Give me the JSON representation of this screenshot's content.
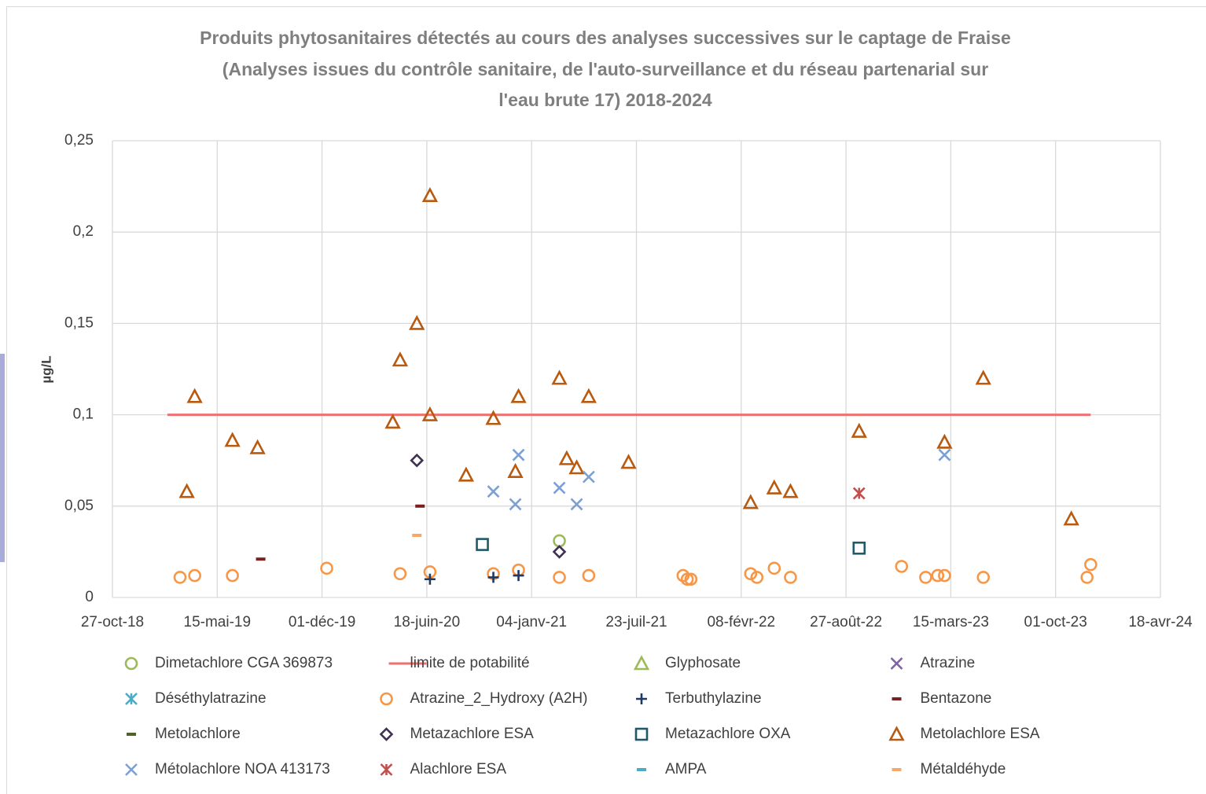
{
  "chart_data": {
    "type": "scatter",
    "title": [
      "Produits phytosanitaires détectés au cours des analyses successives sur le captage de Fraise",
      "(Analyses issues du contrôle sanitaire, de l'auto-surveillance et du réseau partenarial sur",
      "l'eau brute 17) 2018-2024"
    ],
    "y_label": "µg/L",
    "xlim": [
      "2018-10-27",
      "2024-04-18"
    ],
    "xticks": [
      {
        "value": "2018-10-27",
        "label": "27-oct-18"
      },
      {
        "value": "2019-05-15",
        "label": "15-mai-19"
      },
      {
        "value": "2019-12-01",
        "label": "01-déc-19"
      },
      {
        "value": "2020-06-18",
        "label": "18-juin-20"
      },
      {
        "value": "2021-01-04",
        "label": "04-janv-21"
      },
      {
        "value": "2021-07-23",
        "label": "23-juil-21"
      },
      {
        "value": "2022-02-08",
        "label": "08-févr-22"
      },
      {
        "value": "2022-08-27",
        "label": "27-août-22"
      },
      {
        "value": "2023-03-15",
        "label": "15-mars-23"
      },
      {
        "value": "2023-10-01",
        "label": "01-oct-23"
      },
      {
        "value": "2024-04-18",
        "label": "18-avr-24"
      }
    ],
    "ylim": [
      0,
      0.25
    ],
    "yticks": [
      0,
      {
        "value": 0.05,
        "label": "0,05"
      },
      {
        "value": 0.1,
        "label": "0,1"
      },
      {
        "value": 0.15,
        "label": "0,15"
      },
      {
        "value": 0.2,
        "label": "0,2"
      },
      {
        "value": 0.25,
        "label": "0,25"
      }
    ],
    "grid": true,
    "series": [
      {
        "name": "Dimetachlore CGA 369873",
        "color": "#9bbb59",
        "marker": "circle",
        "x": [
          "2021-02-26"
        ],
        "values": [
          0.031
        ]
      },
      {
        "name": "limite de potabilité",
        "color": "#f07070",
        "marker": "line",
        "x": [
          "2019-02-09",
          "2023-12-07"
        ],
        "values": [
          0.1,
          0.1
        ]
      },
      {
        "name": "Glyphosate",
        "color": "#9bbb59",
        "marker": "triangle",
        "x": [],
        "values": []
      },
      {
        "name": "Atrazine",
        "color": "#8064a2",
        "marker": "x",
        "x": [],
        "values": []
      },
      {
        "name": "Déséthylatrazine",
        "color": "#4bacc6",
        "marker": "star",
        "x": [],
        "values": []
      },
      {
        "name": "Atrazine_2_Hydroxy (A2H)",
        "color": "#f79646",
        "marker": "circle",
        "x": [
          "2019-03-05",
          "2019-04-02",
          "2019-06-13",
          "2019-12-10",
          "2020-04-28",
          "2020-06-24",
          "2020-10-23",
          "2020-12-10",
          "2021-02-26",
          "2021-04-23",
          "2021-10-20",
          "2021-10-28",
          "2021-11-04",
          "2022-02-26",
          "2022-03-10",
          "2022-04-12",
          "2022-05-13",
          "2022-12-11",
          "2023-01-26",
          "2023-02-18",
          "2023-03-03",
          "2023-05-16",
          "2023-11-30",
          "2023-12-07"
        ],
        "values": [
          0.011,
          0.012,
          0.012,
          0.016,
          0.013,
          0.014,
          0.013,
          0.015,
          0.011,
          0.012,
          0.012,
          0.01,
          0.01,
          0.013,
          0.011,
          0.016,
          0.011,
          0.017,
          0.011,
          0.012,
          0.012,
          0.011,
          0.011,
          0.018
        ]
      },
      {
        "name": "Terbuthylazine",
        "color": "#1f3864",
        "marker": "plus",
        "x": [
          "2020-06-24",
          "2020-10-23",
          "2020-12-10"
        ],
        "values": [
          0.01,
          0.011,
          0.012
        ]
      },
      {
        "name": "Bentazone",
        "color": "#7b2020",
        "marker": "dash",
        "x": [
          "2019-08-06",
          "2020-06-05"
        ],
        "values": [
          0.021,
          0.05
        ]
      },
      {
        "name": "Metolachlore",
        "color": "#4f6228",
        "marker": "dash",
        "x": [],
        "values": []
      },
      {
        "name": "Metazachlore ESA",
        "color": "#403152",
        "marker": "diamond",
        "x": [
          "2020-05-30",
          "2021-02-26"
        ],
        "values": [
          0.075,
          0.025
        ]
      },
      {
        "name": "Metazachlore OXA",
        "color": "#215968",
        "marker": "square",
        "x": [
          "2020-10-02",
          "2022-09-21"
        ],
        "values": [
          0.029,
          0.027
        ]
      },
      {
        "name": "Metolachlore ESA",
        "color": "#b85a10",
        "marker": "triangle",
        "x": [
          "2019-03-18",
          "2019-04-02",
          "2019-06-13",
          "2019-07-31",
          "2020-04-14",
          "2020-04-28",
          "2020-05-30",
          "2020-06-24",
          "2020-06-24",
          "2020-09-01",
          "2020-10-23",
          "2020-12-04",
          "2020-12-10",
          "2021-02-26",
          "2021-03-12",
          "2021-03-31",
          "2021-04-23",
          "2021-07-08",
          "2022-02-26",
          "2022-04-12",
          "2022-05-13",
          "2022-09-21",
          "2023-03-03",
          "2023-05-16",
          "2023-10-31"
        ],
        "values": [
          0.058,
          0.11,
          0.086,
          0.082,
          0.096,
          0.13,
          0.15,
          0.22,
          0.1,
          0.067,
          0.098,
          0.069,
          0.11,
          0.12,
          0.076,
          0.071,
          0.11,
          0.074,
          0.052,
          0.06,
          0.058,
          0.091,
          0.085,
          0.12,
          0.043
        ]
      },
      {
        "name": "Métolachlore NOA 413173",
        "color": "#7ba0d4",
        "marker": "x",
        "x": [
          "2020-10-23",
          "2020-12-04",
          "2020-12-10",
          "2021-02-26",
          "2021-03-31",
          "2021-04-23",
          "2023-03-03"
        ],
        "values": [
          0.058,
          0.051,
          0.078,
          0.06,
          0.051,
          0.066,
          0.078
        ]
      },
      {
        "name": "Alachlore ESA",
        "color": "#c0504d",
        "marker": "star",
        "x": [
          "2022-09-21"
        ],
        "values": [
          0.057
        ]
      },
      {
        "name": "AMPA",
        "color": "#4bacc6",
        "marker": "dash",
        "x": [],
        "values": []
      },
      {
        "name": "Métaldéhyde",
        "color": "#f5a86a",
        "marker": "dash",
        "x": [
          "2020-05-30"
        ],
        "values": [
          0.034
        ]
      }
    ]
  }
}
